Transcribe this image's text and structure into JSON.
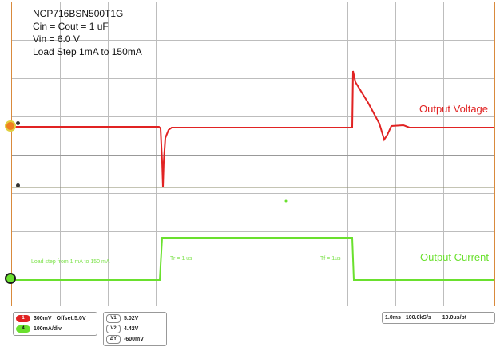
{
  "info": {
    "line1": "NCP716BSN500T1G",
    "line2": "Cin = Cout = 1 uF",
    "line3": "Vin = 6.0 V",
    "line4": "Load Step 1mA to 150mA"
  },
  "labels": {
    "output_voltage": "Output Voltage",
    "output_current": "Output Current",
    "load_step_note": "Load step from 1 mA to 150 mA",
    "tr": "Tr = 1 us",
    "tf": "Tf = 1us"
  },
  "channels": {
    "ch1": {
      "tag": "1",
      "scale": "300mV",
      "offset": "Offset:5.0V"
    },
    "ch4": {
      "tag": "4",
      "scale": "100mA/div"
    }
  },
  "cursors": {
    "v1": {
      "tag": "V1",
      "value": "5.02V"
    },
    "v2": {
      "tag": "V2",
      "value": "4.42V"
    },
    "dv": {
      "tag": "ΔY",
      "value": "-600mV"
    }
  },
  "timebase": {
    "time_div": "1.0ms",
    "sample_rate": "100.0kS/s",
    "resolution": "10.0us/pt"
  },
  "colors": {
    "voltage": "#e12323",
    "current": "#6ae02e",
    "border": "#d98a3c"
  }
}
